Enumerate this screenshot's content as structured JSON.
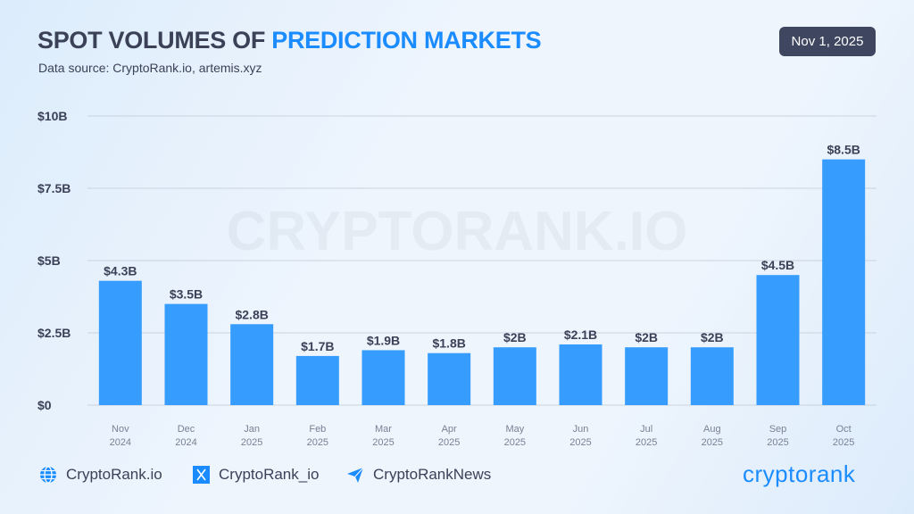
{
  "header": {
    "title_main": "SPOT VOLUMES OF ",
    "title_highlight": "PREDICTION MARKETS",
    "subtitle": "Data source: CryptoRank.io, artemis.xyz",
    "date": "Nov 1, 2025"
  },
  "watermark": "CRYPTORANK.IO",
  "chart_data": {
    "type": "bar",
    "categories": [
      [
        "Nov",
        "2024"
      ],
      [
        "Dec",
        "2024"
      ],
      [
        "Jan",
        "2025"
      ],
      [
        "Feb",
        "2025"
      ],
      [
        "Mar",
        "2025"
      ],
      [
        "Apr",
        "2025"
      ],
      [
        "May",
        "2025"
      ],
      [
        "Jun",
        "2025"
      ],
      [
        "Jul",
        "2025"
      ],
      [
        "Aug",
        "2025"
      ],
      [
        "Sep",
        "2025"
      ],
      [
        "Oct",
        "2025"
      ]
    ],
    "values": [
      4.3,
      3.5,
      2.8,
      1.7,
      1.9,
      1.8,
      2,
      2.1,
      2,
      2,
      4.5,
      8.5
    ],
    "data_labels": [
      "$4.3B",
      "$3.5B",
      "$2.8B",
      "$1.7B",
      "$1.9B",
      "$1.8B",
      "$2B",
      "$2.1B",
      "$2B",
      "$2B",
      "$4.5B",
      "$8.5B"
    ],
    "yticks": [
      0,
      2.5,
      5,
      7.5,
      10
    ],
    "ytick_labels": [
      "$0",
      "$2.5B",
      "$5B",
      "$7.5B",
      "$10B"
    ],
    "ylim": [
      0,
      10
    ],
    "grid": true,
    "bar_color": "#369dff"
  },
  "footer": {
    "website": "CryptoRank.io",
    "twitter": "CryptoRank_io",
    "telegram": "CryptoRankNews",
    "logo": "cryptorank"
  }
}
